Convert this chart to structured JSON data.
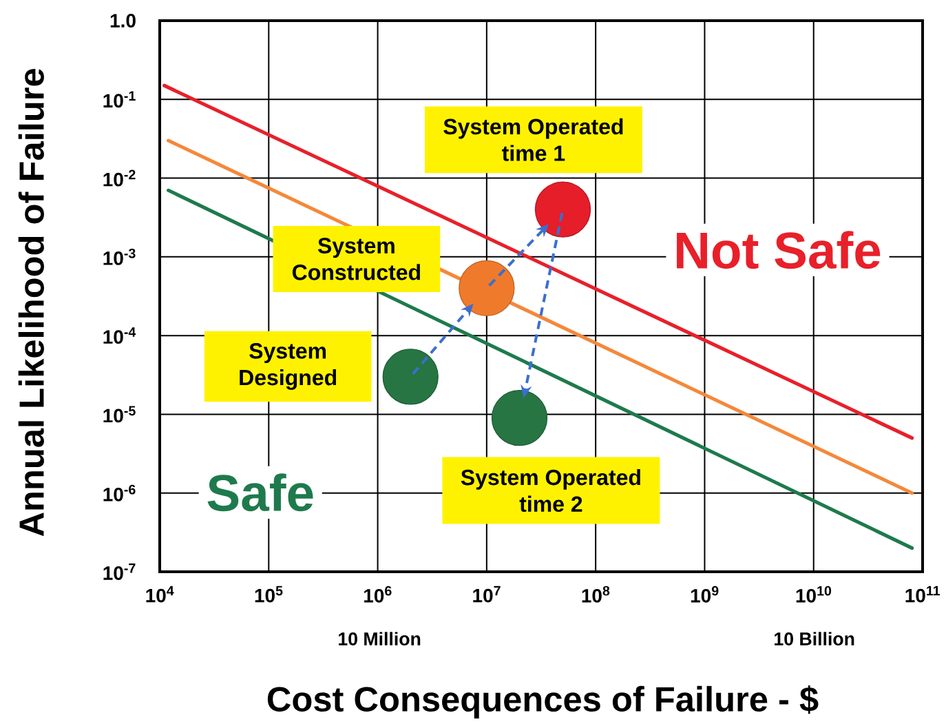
{
  "chart_data": {
    "type": "line",
    "xlabel": "Cost Consequences of Failure - $",
    "ylabel": "Annual Likelihood of Failure",
    "log": "xy",
    "grid": true,
    "line_style": "solid",
    "xlim": [
      10000,
      100000000000
    ],
    "ylim": [
      1e-07,
      1
    ],
    "xticks": [
      {
        "value": 10000,
        "label": "10$^{4}$"
      },
      {
        "value": 100000,
        "label": "10$^{5}$"
      },
      {
        "value": 1000000,
        "label": "10$^{6}$"
      },
      {
        "value": 10000000,
        "label": "10$^{7}$"
      },
      {
        "value": 100000000,
        "label": "10$^{8}$"
      },
      {
        "value": 1000000000,
        "label": "10$^{9}$"
      },
      {
        "value": 10000000000,
        "label": "10$^{10}$"
      },
      {
        "value": 100000000000,
        "label": "10$^{11}$"
      }
    ],
    "yticks": [
      {
        "value": 1e-07,
        "label": "10$^{-7}$"
      },
      {
        "value": 1e-06,
        "label": "10$^{-6}$"
      },
      {
        "value": 1e-05,
        "label": "10$^{-5}$"
      },
      {
        "value": 0.0001,
        "label": "10$^{-4}$"
      },
      {
        "value": 0.001,
        "label": "10$^{-3}$"
      },
      {
        "value": 0.01,
        "label": "10$^{-2}$"
      },
      {
        "value": 0.1,
        "label": "10$^{-1}$"
      },
      {
        "value": 1,
        "label": "1.0"
      }
    ],
    "series": [
      {
        "color": "#e8202a",
        "x": [
          11000,
          80000000000
        ],
        "values": [
          0.15,
          5e-06
        ]
      },
      {
        "color": "#f5883a",
        "x": [
          12000,
          80000000000
        ],
        "values": [
          0.03,
          1e-06
        ]
      },
      {
        "color": "#1e7a4c",
        "x": [
          12000,
          80000000000
        ],
        "values": [
          0.007,
          2e-07
        ]
      },
      {
        "type": "scatter",
        "marker": "circle",
        "x": [
          2000000,
          10000000,
          50000000,
          20000000
        ],
        "values": [
          3e-05,
          0.0004,
          0.004,
          9e-06
        ],
        "colors": [
          "#267543",
          "#f07a2c",
          "#e51e2a",
          "#267543"
        ]
      }
    ],
    "annotations": [
      "System Operated time 1",
      "System Constructed",
      "System Designed",
      "System Operated time 2",
      "Safe",
      "Not Safe",
      "10 Million",
      "10 Billion"
    ]
  }
}
